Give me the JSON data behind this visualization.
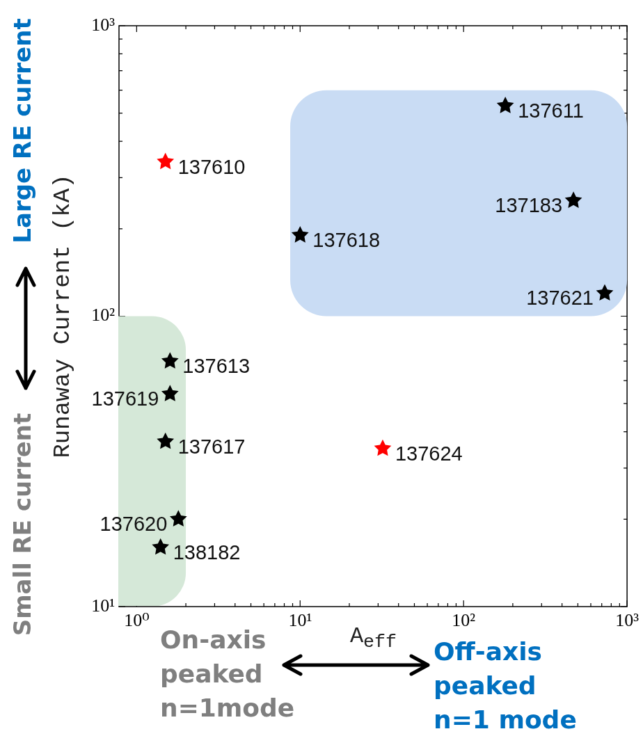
{
  "chart_data": {
    "type": "scatter",
    "xlabel": "A$_{eff}$",
    "ylabel": "Runaway Current (kA)",
    "x": [
      1.5,
      10,
      180,
      470,
      730,
      1.6,
      1.6,
      1.5,
      1.8,
      1.4,
      32
    ],
    "values": [
      340,
      190,
      530,
      250,
      120,
      70,
      54,
      37,
      20,
      16,
      35
    ],
    "colors": [
      "#ff0000",
      "#000000",
      "#000000",
      "#000000",
      "#000000",
      "#000000",
      "#000000",
      "#000000",
      "#000000",
      "#000000",
      "#ff0000"
    ],
    "marker": "star",
    "log": "xy",
    "grid": false,
    "xlim": [
      0.78,
      1000
    ],
    "ylim": [
      10,
      1000
    ],
    "xticks": [
      {
        "value": 1,
        "label": "10⁰"
      },
      {
        "value": 2,
        "label": null
      },
      {
        "value": 3,
        "label": null
      },
      {
        "value": 4,
        "label": null
      },
      {
        "value": 5,
        "label": null
      },
      {
        "value": 6,
        "label": null
      },
      {
        "value": 7,
        "label": null
      },
      {
        "value": 8,
        "label": null
      },
      {
        "value": 9,
        "label": null
      },
      {
        "value": 10,
        "label": "10¹"
      },
      {
        "value": 20,
        "label": null
      },
      {
        "value": 30,
        "label": null
      },
      {
        "value": 40,
        "label": null
      },
      {
        "value": 50,
        "label": null
      },
      {
        "value": 60,
        "label": null
      },
      {
        "value": 70,
        "label": null
      },
      {
        "value": 80,
        "label": null
      },
      {
        "value": 90,
        "label": null
      },
      {
        "value": 100,
        "label": "10²"
      },
      {
        "value": 200,
        "label": null
      },
      {
        "value": 300,
        "label": null
      },
      {
        "value": 400,
        "label": null
      },
      {
        "value": 500,
        "label": null
      },
      {
        "value": 600,
        "label": null
      },
      {
        "value": 700,
        "label": null
      },
      {
        "value": 800,
        "label": null
      },
      {
        "value": 900,
        "label": null
      },
      {
        "value": 1000,
        "label": "10³"
      }
    ],
    "yticks": [
      {
        "value": 10,
        "label": "10¹"
      },
      {
        "value": 20,
        "label": null
      },
      {
        "value": 30,
        "label": null
      },
      {
        "value": 40,
        "label": null
      },
      {
        "value": 50,
        "label": null
      },
      {
        "value": 60,
        "label": null
      },
      {
        "value": 70,
        "label": null
      },
      {
        "value": 80,
        "label": null
      },
      {
        "value": 90,
        "label": null
      },
      {
        "value": 100,
        "label": "10²"
      },
      {
        "value": 200,
        "label": null
      },
      {
        "value": 300,
        "label": null
      },
      {
        "value": 400,
        "label": null
      },
      {
        "value": 500,
        "label": null
      },
      {
        "value": 600,
        "label": null
      },
      {
        "value": 700,
        "label": null
      },
      {
        "value": 800,
        "label": null
      },
      {
        "value": 900,
        "label": null
      },
      {
        "value": 1000,
        "label": "10³"
      }
    ],
    "bands": [
      {
        "axis": "x",
        "from": 0.78,
        "to": 2,
        "color": "#d5e8d8"
      },
      {
        "axis": "x",
        "from": 8.7,
        "to": 1000,
        "color": "#c9dcf4"
      }
    ],
    "annotations": [
      {
        "text": "137610",
        "x": 1.5,
        "y": 340
      },
      {
        "text": "137618",
        "x": 10,
        "y": 190
      },
      {
        "text": "137611",
        "x": 180,
        "y": 530
      },
      {
        "text": "137183",
        "x": 470,
        "y": 250
      },
      {
        "text": "137621",
        "x": 730,
        "y": 120
      },
      {
        "text": "137613",
        "x": 1.6,
        "y": 70
      },
      {
        "text": "137619",
        "x": 1.6,
        "y": 54
      },
      {
        "text": "137617",
        "x": 1.5,
        "y": 37
      },
      {
        "text": "137620",
        "x": 1.8,
        "y": 20
      },
      {
        "text": "138182",
        "x": 1.4,
        "y": 16
      },
      {
        "text": "137624",
        "x": 32,
        "y": 35
      },
      "Large RE current",
      "Small RE current",
      "On-axis peaked n=1mode",
      "Off-axis peaked n=1 mode"
    ]
  }
}
